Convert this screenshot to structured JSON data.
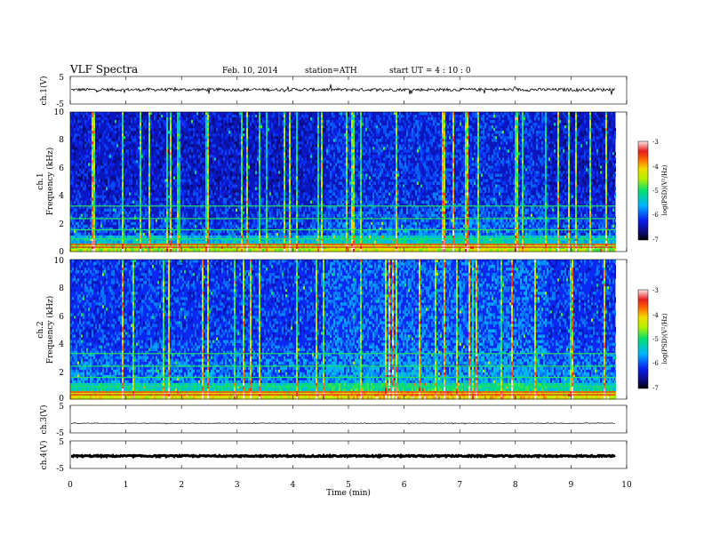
{
  "header": {
    "title": "VLF  Spectra",
    "date": "Feb. 10, 2014",
    "station": "station=ATH",
    "start_ut": "start  UT  =   4  : 10 : 0"
  },
  "chart_data": [
    {
      "type": "line",
      "panel": "ch1-waveform",
      "ylabel": "ch.1(V)",
      "yticks": [
        "5",
        "-5"
      ],
      "ylim": [
        -5,
        5
      ],
      "xlim": [
        0,
        10
      ],
      "baseline": 0.2,
      "color": "#000000"
    },
    {
      "type": "heatmap",
      "panel": "ch1-spectrogram",
      "ylabel_top": "ch.1",
      "ylabel": "Frequency (kHz)",
      "yticks": [
        "0",
        "2",
        "4",
        "6",
        "8",
        "10"
      ],
      "ylim": [
        0,
        10
      ],
      "xlim": [
        0,
        9.8
      ],
      "colorbar": {
        "label": "log(PSD)(V²/Hz)",
        "ticks": [
          "-3",
          "-4",
          "-5",
          "-6",
          "-7"
        ],
        "range": [
          -7,
          -3
        ]
      }
    },
    {
      "type": "heatmap",
      "panel": "ch2-spectrogram",
      "ylabel_top": "ch.2",
      "ylabel": "Frequency (kHz)",
      "yticks": [
        "0",
        "2",
        "4",
        "6",
        "8",
        "10"
      ],
      "ylim": [
        0,
        10
      ],
      "xlim": [
        0,
        9.8
      ],
      "colorbar": {
        "label": "log(PSD)(V²/Hz)",
        "ticks": [
          "-3",
          "-4",
          "-5",
          "-6",
          "-7"
        ],
        "range": [
          -7,
          -3
        ]
      }
    },
    {
      "type": "line",
      "panel": "ch3-waveform",
      "ylabel": "ch.3(V)",
      "yticks": [
        "5",
        "-5"
      ],
      "ylim": [
        -5,
        5
      ],
      "xlim": [
        0,
        10
      ],
      "baseline": -1.5,
      "color": "#000000"
    },
    {
      "type": "line",
      "panel": "ch4-waveform",
      "ylabel": "ch.4(V)",
      "yticks": [
        "5",
        "-5"
      ],
      "ylim": [
        -5,
        5
      ],
      "xlim": [
        0,
        10
      ],
      "baseline": -0.5,
      "color": "#000000"
    }
  ],
  "xaxis": {
    "label": "Time  (min)",
    "ticks": [
      "0",
      "1",
      "2",
      "3",
      "4",
      "5",
      "6",
      "7",
      "8",
      "9",
      "10"
    ],
    "range": [
      0,
      10
    ]
  }
}
